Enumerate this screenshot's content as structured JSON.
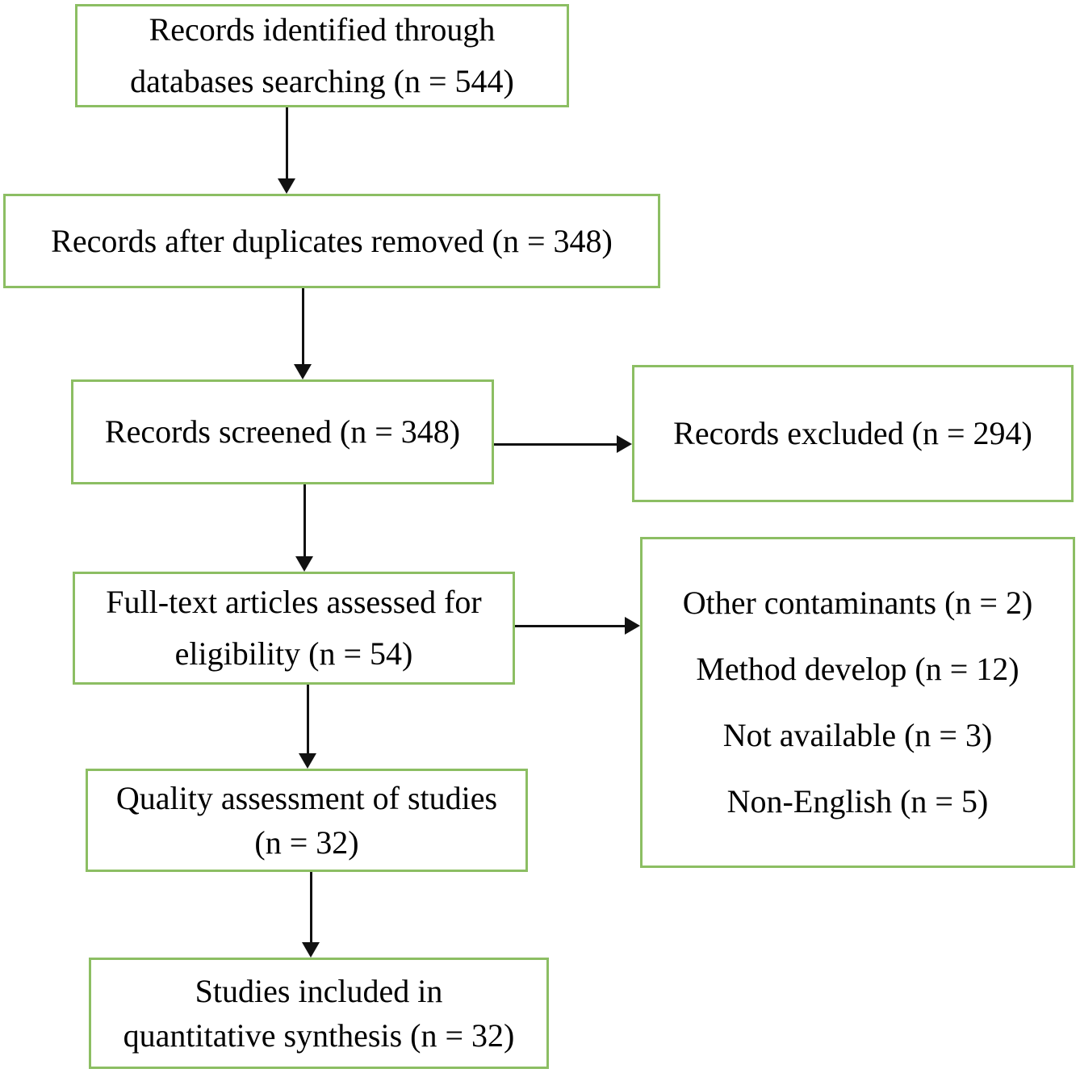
{
  "colors": {
    "box_border": "#8cbe63",
    "arrow": "#111111",
    "text": "#000000"
  },
  "flow": {
    "main": [
      {
        "id": "records-identified",
        "lines": [
          "Records identified through",
          "databases searching (n = 544)"
        ]
      },
      {
        "id": "duplicates-removed",
        "lines": [
          "Records after duplicates removed (n = 348)"
        ]
      },
      {
        "id": "records-screened",
        "lines": [
          "Records screened (n = 348)"
        ]
      },
      {
        "id": "fulltext-assessed",
        "lines": [
          "Full-text articles assessed for",
          "eligibility (n = 54)"
        ]
      },
      {
        "id": "quality-assessment",
        "lines": [
          "Quality assessment of studies",
          "(n = 32)"
        ]
      },
      {
        "id": "studies-included",
        "lines": [
          "Studies included in",
          "quantitative synthesis (n = 32)"
        ]
      }
    ],
    "side": [
      {
        "id": "records-excluded",
        "lines": [
          "Records excluded (n = 294)"
        ]
      },
      {
        "id": "fulltext-exclusions",
        "lines": [
          "Other contaminants (n = 2)",
          "Method develop (n = 12)",
          "Not available (n = 3)",
          "Non-English (n = 5)"
        ]
      }
    ]
  }
}
